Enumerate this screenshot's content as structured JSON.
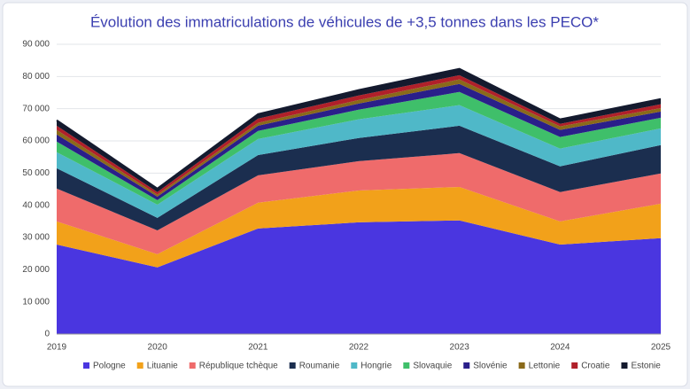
{
  "chart_data": {
    "type": "stacked_area",
    "title": "Évolution des immatriculations de véhicules de +3,5 tonnes dans les PECO*",
    "categories": [
      "2019",
      "2020",
      "2021",
      "2022",
      "2023",
      "2024",
      "2025"
    ],
    "series": [
      {
        "name": "Pologne",
        "color": "#4a36e0",
        "values": [
          27800,
          20700,
          32800,
          34700,
          35300,
          27800,
          29800
        ]
      },
      {
        "name": "Lituanie",
        "color": "#f2a11a",
        "values": [
          7200,
          4100,
          8000,
          9900,
          10400,
          7200,
          10700
        ]
      },
      {
        "name": "République tchèque",
        "color": "#ef6b6b",
        "values": [
          10200,
          7400,
          8500,
          9100,
          10500,
          9100,
          9400
        ]
      },
      {
        "name": "Roumanie",
        "color": "#1b2e4f",
        "values": [
          6300,
          3900,
          6300,
          7200,
          8500,
          8000,
          8800
        ]
      },
      {
        "name": "Hongrie",
        "color": "#4fb8c8",
        "values": [
          5000,
          4100,
          5000,
          5800,
          6400,
          5500,
          5200
        ]
      },
      {
        "name": "Slovaquie",
        "color": "#3fbf6a",
        "values": [
          3300,
          1400,
          2500,
          3000,
          4100,
          3600,
          3300
        ]
      },
      {
        "name": "Slovénie",
        "color": "#2a1f8a",
        "values": [
          2200,
          1100,
          1600,
          1900,
          2500,
          2200,
          1900
        ]
      },
      {
        "name": "Lettonie",
        "color": "#8a6a1a",
        "values": [
          1400,
          600,
          900,
          1100,
          1400,
          1100,
          1100
        ]
      },
      {
        "name": "Croatie",
        "color": "#b0202a",
        "values": [
          1300,
          800,
          1300,
          1400,
          1300,
          800,
          1200
        ]
      },
      {
        "name": "Estonie",
        "color": "#141a2e",
        "values": [
          1700,
          1100,
          1400,
          1700,
          2000,
          1400,
          1600
        ]
      }
    ],
    "ylim": [
      0,
      90000
    ],
    "yticks": [
      0,
      {
        "value": 10000,
        "label": "10 000"
      },
      {
        "value": 20000,
        "label": "20 000"
      },
      {
        "value": 30000,
        "label": "30 000"
      },
      {
        "value": 40000,
        "label": "40 000"
      },
      {
        "value": 50000,
        "label": "50 000"
      },
      {
        "value": 60000,
        "label": "60 000"
      },
      {
        "value": 70000,
        "label": "70 000"
      },
      {
        "value": 80000,
        "label": "80 000"
      },
      {
        "value": 90000,
        "label": "90 000"
      }
    ],
    "grid": true,
    "legend": "bottom"
  }
}
